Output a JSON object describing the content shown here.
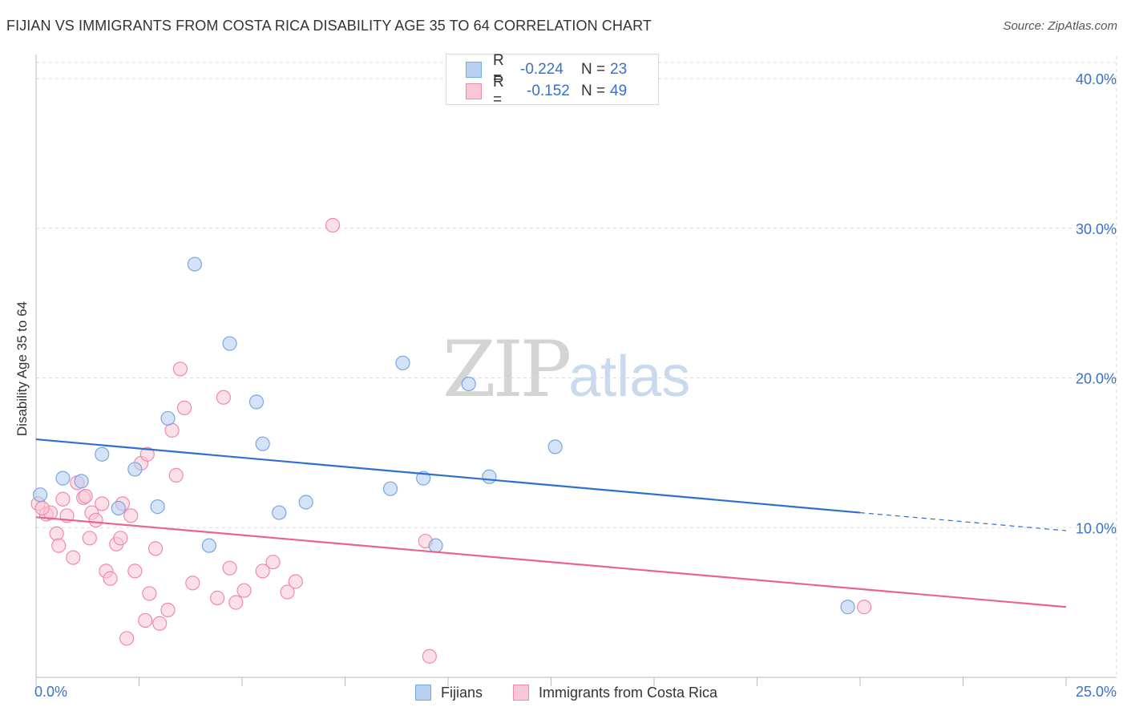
{
  "title": "FIJIAN VS IMMIGRANTS FROM COSTA RICA DISABILITY AGE 35 TO 64 CORRELATION CHART",
  "source": "Source: ZipAtlas.com",
  "watermark": {
    "zip": "ZIP",
    "atlas": "atlas"
  },
  "legend_top": {
    "rows": [
      {
        "r_label": "R =",
        "r_value": "-0.224",
        "n_label": "N =",
        "n_value": "23"
      },
      {
        "r_label": "R =",
        "r_value": "-0.152",
        "n_label": "N =",
        "n_value": "49"
      }
    ]
  },
  "legend_bottom": {
    "series0": "Fijians",
    "series1": "Immigrants from Costa Rica"
  },
  "colors": {
    "fijian_fill": "#b8d0f2",
    "fijian_stroke": "#7aa6e0",
    "fijian_line": "#2f6fcf",
    "costa_fill": "#f9c7d6",
    "costa_stroke": "#f08aab",
    "costa_line": "#e8648f",
    "axis_text": "#3a70c9",
    "grid": "#dcdcdc"
  },
  "chart_data": {
    "type": "scatter",
    "title": "FIJIAN VS IMMIGRANTS FROM COSTA RICA DISABILITY AGE 35 TO 64 CORRELATION CHART",
    "xlabel": "",
    "ylabel": "Disability Age 35 to 64",
    "xlim": [
      0,
      25
    ],
    "ylim": [
      0,
      40
    ],
    "x_tick_labels": [
      "0.0%",
      "25.0%"
    ],
    "y_ticks": [
      10,
      20,
      30,
      40
    ],
    "y_tick_labels": [
      "10.0%",
      "20.0%",
      "30.0%",
      "40.0%"
    ],
    "grid": true,
    "legend_placement": "bottom",
    "series": [
      {
        "name": "Fijians",
        "trend": {
          "x0": 0,
          "y0": 15.9,
          "x1": 20,
          "y1": 11.0,
          "x_dash_end": 25,
          "y_dash_end": 9.8
        },
        "points": [
          [
            0.1,
            12.2
          ],
          [
            0.65,
            13.3
          ],
          [
            1.1,
            13.1
          ],
          [
            1.6,
            14.9
          ],
          [
            2.0,
            11.3
          ],
          [
            2.4,
            13.9
          ],
          [
            2.95,
            11.4
          ],
          [
            3.2,
            17.3
          ],
          [
            3.85,
            27.6
          ],
          [
            4.2,
            8.8
          ],
          [
            4.7,
            22.3
          ],
          [
            5.35,
            18.4
          ],
          [
            5.5,
            15.6
          ],
          [
            5.9,
            11.0
          ],
          [
            6.55,
            11.7
          ],
          [
            8.6,
            12.6
          ],
          [
            8.9,
            21.0
          ],
          [
            9.4,
            13.3
          ],
          [
            9.7,
            8.8
          ],
          [
            10.5,
            19.6
          ],
          [
            11.0,
            13.4
          ],
          [
            12.6,
            15.4
          ],
          [
            19.7,
            4.7
          ]
        ]
      },
      {
        "name": "Immigrants from Costa Rica",
        "trend": {
          "x0": 0,
          "y0": 10.7,
          "x1": 25,
          "y1": 4.7
        },
        "points": [
          [
            0.05,
            11.6
          ],
          [
            0.25,
            10.9
          ],
          [
            0.35,
            11.0
          ],
          [
            0.5,
            9.6
          ],
          [
            0.55,
            8.8
          ],
          [
            0.65,
            11.9
          ],
          [
            0.75,
            10.8
          ],
          [
            0.9,
            8.0
          ],
          [
            1.0,
            13.0
          ],
          [
            1.15,
            12.0
          ],
          [
            1.2,
            12.1
          ],
          [
            1.3,
            9.3
          ],
          [
            1.35,
            11.0
          ],
          [
            1.45,
            10.5
          ],
          [
            1.6,
            11.6
          ],
          [
            1.7,
            7.1
          ],
          [
            1.8,
            6.6
          ],
          [
            1.95,
            8.9
          ],
          [
            2.05,
            9.3
          ],
          [
            2.1,
            11.6
          ],
          [
            2.2,
            2.6
          ],
          [
            2.3,
            10.8
          ],
          [
            2.4,
            7.1
          ],
          [
            2.55,
            14.3
          ],
          [
            2.65,
            3.8
          ],
          [
            2.7,
            14.9
          ],
          [
            2.75,
            5.6
          ],
          [
            2.9,
            8.6
          ],
          [
            3.0,
            3.6
          ],
          [
            3.2,
            4.5
          ],
          [
            3.3,
            16.5
          ],
          [
            3.4,
            13.5
          ],
          [
            3.5,
            20.6
          ],
          [
            3.6,
            18.0
          ],
          [
            3.8,
            6.3
          ],
          [
            4.4,
            5.3
          ],
          [
            4.55,
            18.7
          ],
          [
            4.7,
            7.3
          ],
          [
            4.85,
            5.0
          ],
          [
            5.05,
            5.8
          ],
          [
            5.5,
            7.1
          ],
          [
            5.75,
            7.7
          ],
          [
            6.1,
            5.7
          ],
          [
            6.3,
            6.4
          ],
          [
            7.2,
            30.2
          ],
          [
            9.45,
            9.1
          ],
          [
            9.55,
            1.4
          ],
          [
            20.1,
            4.7
          ],
          [
            0.15,
            11.3
          ]
        ]
      }
    ]
  }
}
